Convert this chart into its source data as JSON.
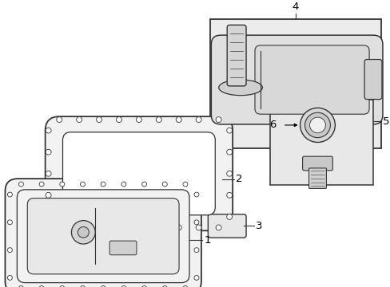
{
  "background_color": "#ffffff",
  "line_color": "#333333",
  "gray_fill": "#e8e8e8",
  "light_fill": "#f2f2f2",
  "dark_gray": "#aaaaaa",
  "box_fill": "#e0e0e0"
}
